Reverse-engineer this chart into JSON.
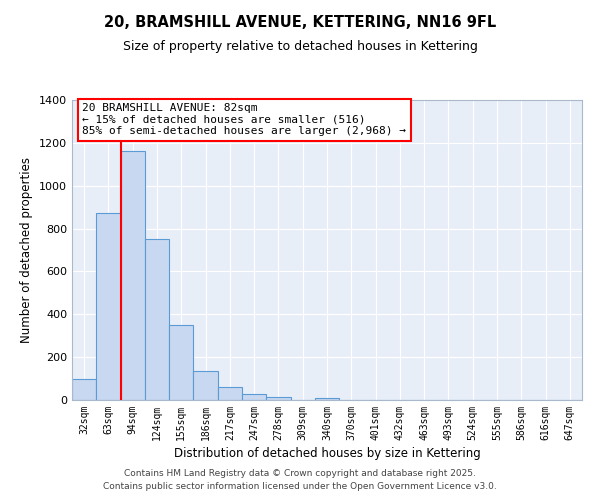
{
  "title": "20, BRAMSHILL AVENUE, KETTERING, NN16 9FL",
  "subtitle": "Size of property relative to detached houses in Kettering",
  "xlabel": "Distribution of detached houses by size in Kettering",
  "ylabel": "Number of detached properties",
  "bar_color": "#c8d8f0",
  "bar_edge_color": "#5b9bd5",
  "categories": [
    "32sqm",
    "63sqm",
    "94sqm",
    "124sqm",
    "155sqm",
    "186sqm",
    "217sqm",
    "247sqm",
    "278sqm",
    "309sqm",
    "340sqm",
    "370sqm",
    "401sqm",
    "432sqm",
    "463sqm",
    "493sqm",
    "524sqm",
    "555sqm",
    "586sqm",
    "616sqm",
    "647sqm"
  ],
  "values": [
    100,
    875,
    1160,
    750,
    350,
    135,
    60,
    30,
    15,
    0,
    10,
    0,
    0,
    0,
    0,
    0,
    0,
    0,
    0,
    0,
    0
  ],
  "ylim": [
    0,
    1400
  ],
  "yticks": [
    0,
    200,
    400,
    600,
    800,
    1000,
    1200,
    1400
  ],
  "annotation_text": "20 BRAMSHILL AVENUE: 82sqm\n← 15% of detached houses are smaller (516)\n85% of semi-detached houses are larger (2,968) →",
  "footer_line1": "Contains HM Land Registry data © Crown copyright and database right 2025.",
  "footer_line2": "Contains public sector information licensed under the Open Government Licence v3.0.",
  "background_color": "#ffffff",
  "plot_bg_color": "#e8eef8",
  "grid_color": "#ffffff"
}
